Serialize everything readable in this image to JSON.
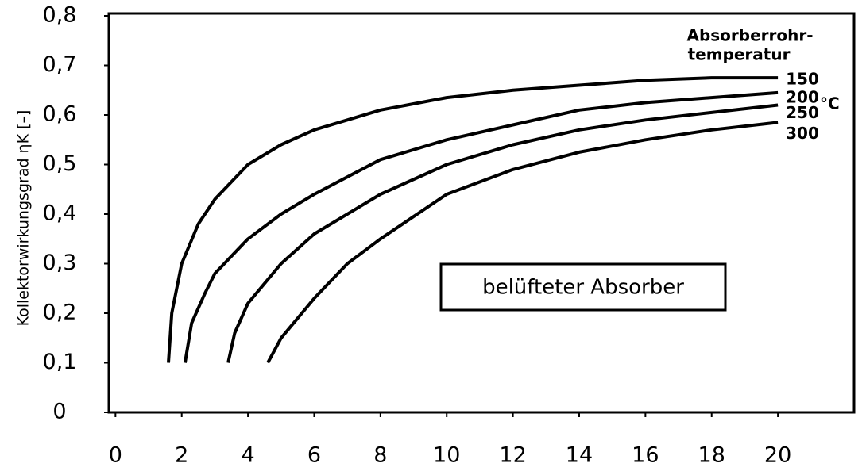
{
  "chart_data": {
    "type": "line",
    "y_label": "Kollektorwirkungsgrad ηK [–]",
    "legend_title": [
      "Absorberrohr-",
      "temperatur"
    ],
    "legend_unit": "°C",
    "annotation": "belüfteter Absorber",
    "xlim": [
      -0.2,
      22.3
    ],
    "ylim": [
      0,
      0.8
    ],
    "xticks": [
      0,
      2,
      4,
      6,
      8,
      10,
      12,
      14,
      16,
      18,
      20
    ],
    "yticks": [
      0,
      {
        "value": 0.1,
        "label": "0,1"
      },
      {
        "value": 0.2,
        "label": "0,2"
      },
      {
        "value": 0.3,
        "label": "0,3"
      },
      {
        "value": 0.4,
        "label": "0,4"
      },
      {
        "value": 0.5,
        "label": "0,5"
      },
      {
        "value": 0.6,
        "label": "0,6"
      },
      {
        "value": 0.7,
        "label": "0,7"
      },
      {
        "value": 0.8,
        "label": "0,8"
      }
    ],
    "series": [
      {
        "name": "150",
        "color": "#000000",
        "x": [
          1.6,
          1.7,
          2.0,
          2.5,
          3,
          4,
          5,
          6,
          8,
          10,
          12,
          14,
          16,
          18,
          20
        ],
        "values": [
          0.1,
          0.2,
          0.3,
          0.38,
          0.43,
          0.5,
          0.54,
          0.57,
          0.61,
          0.635,
          0.65,
          0.66,
          0.67,
          0.675,
          0.675
        ]
      },
      {
        "name": "200",
        "color": "#000000",
        "x": [
          2.1,
          2.3,
          2.7,
          3,
          4,
          5,
          6,
          8,
          10,
          12,
          14,
          16,
          18,
          20
        ],
        "values": [
          0.1,
          0.18,
          0.24,
          0.28,
          0.35,
          0.4,
          0.44,
          0.51,
          0.55,
          0.58,
          0.61,
          0.625,
          0.635,
          0.645
        ]
      },
      {
        "name": "250",
        "color": "#000000",
        "x": [
          3.4,
          3.6,
          4,
          5,
          6,
          8,
          10,
          12,
          14,
          16,
          18,
          20
        ],
        "values": [
          0.1,
          0.16,
          0.22,
          0.3,
          0.36,
          0.44,
          0.5,
          0.54,
          0.57,
          0.59,
          0.605,
          0.62
        ]
      },
      {
        "name": "300",
        "color": "#000000",
        "x": [
          4.6,
          5,
          6,
          7,
          8,
          10,
          12,
          14,
          16,
          18,
          20
        ],
        "values": [
          0.1,
          0.15,
          0.23,
          0.3,
          0.35,
          0.44,
          0.49,
          0.525,
          0.55,
          0.57,
          0.585
        ]
      }
    ]
  }
}
